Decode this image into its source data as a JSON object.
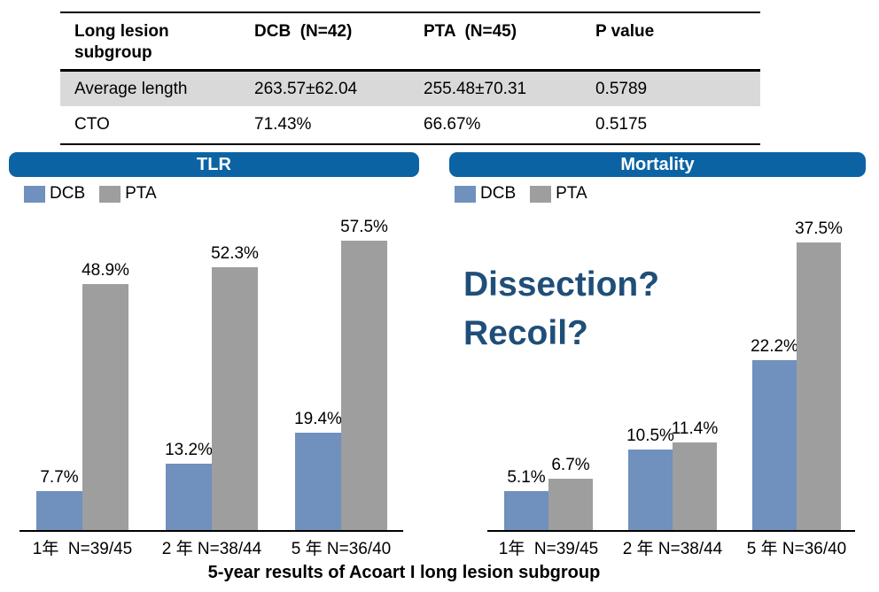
{
  "table": {
    "col_headers": [
      "Long lesion subgroup",
      "DCB  (N=42)",
      "PTA  (N=45)",
      "P value"
    ],
    "rows": [
      {
        "cells": [
          "Average length",
          "263.57±62.04",
          "255.48±70.31",
          "0.5789"
        ],
        "highlight": true
      },
      {
        "cells": [
          "CTO",
          "71.43%",
          "66.67%",
          "0.5175"
        ],
        "highlight": false
      }
    ]
  },
  "annotation": {
    "line1": "Dissection?",
    "line2": "Recoil?"
  },
  "caption": "5-year results of Acoart I long lesion subgroup",
  "colors": {
    "panel_header_blue": "#0B63A4",
    "dcb_blue": "#7090BD",
    "pta_gray": "#9E9E9E",
    "table_highlight_gray": "#D9D9D9",
    "annotation_blue": "#1F4E79"
  },
  "chart_data": [
    {
      "type": "bar",
      "title": "TLR",
      "categories": [
        "1年  N=39/45",
        "2 年 N=38/44",
        "5 年 N=36/40"
      ],
      "series": [
        {
          "name": "DCB",
          "values": [
            7.7,
            13.2,
            19.4
          ]
        },
        {
          "name": "PTA",
          "values": [
            48.9,
            52.3,
            57.5
          ]
        }
      ],
      "unit": "%",
      "ylim": [
        0,
        63
      ],
      "legend_position": "top-left",
      "gridlines": false,
      "value_labels_shown": true
    },
    {
      "type": "bar",
      "title": "Mortality",
      "categories": [
        "1年  N=39/45",
        "2 年 N=38/44",
        "5 年 N=36/40"
      ],
      "series": [
        {
          "name": "DCB",
          "values": [
            5.1,
            10.5,
            22.2
          ]
        },
        {
          "name": "PTA",
          "values": [
            6.7,
            11.4,
            37.5
          ]
        }
      ],
      "unit": "%",
      "ylim": [
        0,
        41.3
      ],
      "legend_position": "top-left",
      "gridlines": false,
      "value_labels_shown": true
    }
  ]
}
